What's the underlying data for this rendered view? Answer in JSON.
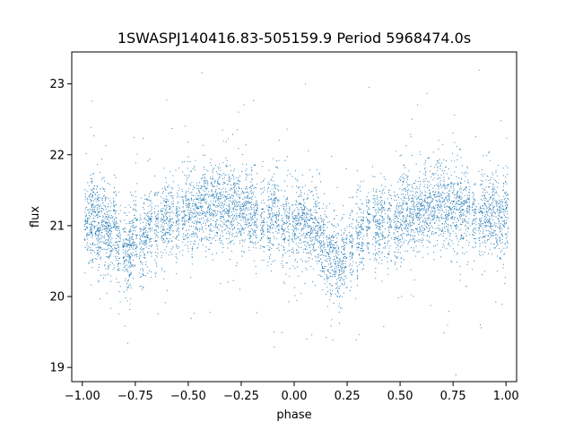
{
  "chart_data": {
    "type": "scatter",
    "title": "1SWASPJ140416.83-505159.9 Period 5968474.0s",
    "xlabel": "phase",
    "ylabel": "flux",
    "xlim": [
      -1.05,
      1.05
    ],
    "ylim": [
      18.8,
      23.45
    ],
    "xticks": [
      -1.0,
      -0.75,
      -0.5,
      -0.25,
      0.0,
      0.25,
      0.5,
      0.75,
      1.0
    ],
    "xtick_labels": [
      "−1.00",
      "−0.75",
      "−0.50",
      "−0.25",
      "0.00",
      "0.25",
      "0.50",
      "0.75",
      "1.00"
    ],
    "yticks": [
      19,
      20,
      21,
      22,
      23
    ],
    "ytick_labels": [
      "19",
      "20",
      "21",
      "22",
      "23"
    ],
    "grid": false,
    "marker_color": "#1f77b4",
    "series": [
      {
        "description_of_cloud": "folded light curve points repeated over two cycles",
        "x": [
          -0.98,
          -0.96,
          -0.95,
          -0.93,
          -0.92,
          -0.9,
          -0.88,
          -0.87,
          -0.85,
          -0.83,
          -0.8,
          -0.78,
          -0.77,
          -0.75,
          -0.72,
          -0.7,
          -0.68,
          -0.65,
          -0.62,
          -0.6,
          -0.58,
          -0.55,
          -0.52,
          -0.5,
          -0.48,
          -0.46,
          -0.44,
          -0.42,
          -0.4,
          -0.38,
          -0.36,
          -0.34,
          -0.32,
          -0.3,
          -0.28,
          -0.26,
          -0.24,
          -0.22,
          -0.2,
          -0.18,
          -0.15,
          -0.12,
          -0.1,
          -0.08,
          -0.05,
          -0.03,
          0.0,
          0.02,
          0.04,
          0.06,
          0.08,
          0.1,
          0.12,
          0.14,
          0.16,
          0.18,
          0.2,
          0.22,
          0.24,
          0.27,
          0.3,
          0.32,
          0.35,
          0.38,
          0.4,
          0.42,
          0.45,
          0.48,
          0.5,
          0.52,
          0.54,
          0.56,
          0.58,
          0.6,
          0.62,
          0.64,
          0.66,
          0.68,
          0.7,
          0.72,
          0.74,
          0.76,
          0.78,
          0.8,
          0.82,
          0.85,
          0.88,
          0.9,
          0.92,
          0.94,
          0.96,
          0.98,
          1.0
        ],
        "y": [
          21.1,
          21.0,
          21.2,
          21.0,
          20.9,
          21.1,
          20.9,
          20.8,
          21.0,
          20.7,
          20.6,
          20.5,
          20.8,
          20.9,
          20.7,
          20.9,
          21.0,
          21.0,
          21.0,
          21.1,
          21.0,
          21.1,
          21.2,
          21.2,
          21.1,
          21.2,
          21.2,
          21.3,
          21.2,
          21.3,
          21.4,
          21.3,
          21.3,
          21.2,
          21.3,
          21.2,
          21.2,
          21.3,
          21.2,
          21.1,
          21.1,
          21.1,
          21.1,
          21.2,
          21.0,
          21.0,
          21.0,
          21.0,
          21.1,
          20.9,
          21.0,
          21.0,
          20.8,
          20.7,
          20.6,
          20.6,
          20.5,
          20.4,
          20.6,
          20.7,
          20.8,
          20.9,
          21.0,
          21.0,
          21.0,
          21.0,
          21.1,
          21.0,
          21.1,
          21.2,
          21.2,
          21.1,
          21.2,
          21.2,
          21.3,
          21.2,
          21.3,
          21.4,
          21.3,
          21.2,
          21.3,
          21.2,
          21.3,
          21.2,
          21.2,
          21.1,
          21.1,
          21.2,
          21.1,
          21.2,
          21.1,
          21.1,
          21.2
        ]
      }
    ]
  }
}
